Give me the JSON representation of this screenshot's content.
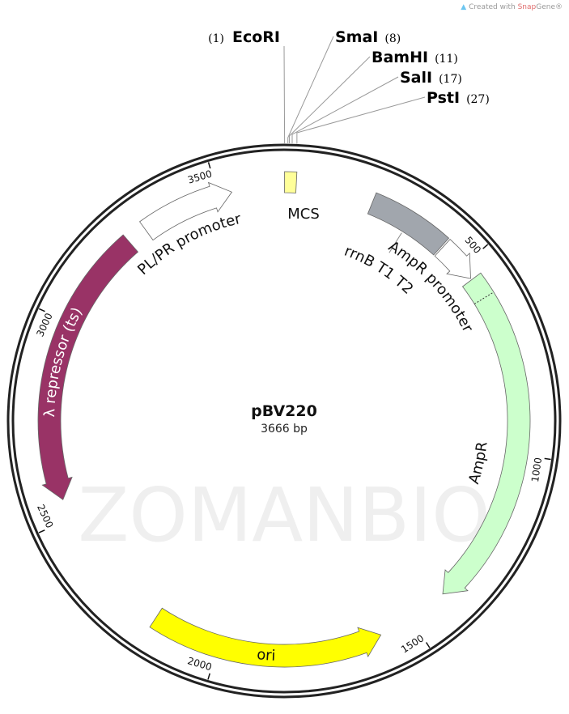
{
  "credit": {
    "prefix": "Created with ",
    "brand_a": "Snap",
    "brand_b": "Gene",
    "suffix": "®"
  },
  "watermark": "ZOMANBIO",
  "plasmid": {
    "name": "pBV220",
    "length_label": "3666 bp",
    "length": 3666
  },
  "enzymes": [
    {
      "name": "EcoRI",
      "pos_label": "(1)",
      "pos": 1
    },
    {
      "name": "SmaI",
      "pos_label": "(8)",
      "pos": 8
    },
    {
      "name": "BamHI",
      "pos_label": "(11)",
      "pos": 11
    },
    {
      "name": "SalI",
      "pos_label": "(17)",
      "pos": 17
    },
    {
      "name": "PstI",
      "pos_label": "(27)",
      "pos": 27
    }
  ],
  "features": [
    {
      "name": "MCS",
      "start": 1,
      "end": 30,
      "direction": "none",
      "color": "#ffff99"
    },
    {
      "name": "rrnB T1 T2",
      "start": 224,
      "end": 428,
      "direction": "none",
      "color": "#a1a6ad"
    },
    {
      "name": "AmpR promoter",
      "start": 432,
      "end": 536,
      "direction": "forward",
      "color": "#ffffff"
    },
    {
      "name": "AmpR",
      "start": 540,
      "end": 1400,
      "direction": "forward",
      "color": "#ccffcc"
    },
    {
      "name": "ori",
      "start": 1585,
      "end": 2170,
      "direction": "reverse",
      "color": "#ffff00"
    },
    {
      "name": "λ repressor (ts)",
      "start": 2550,
      "end": 3250,
      "direction": "reverse",
      "color": "#993366"
    },
    {
      "name": "PL/PR promoter",
      "start": 3300,
      "end": 3535,
      "direction": "forward",
      "color": "#ffffff"
    }
  ],
  "ticks": [
    "500",
    "1000",
    "1500",
    "2000",
    "2500",
    "3000",
    "3500"
  ]
}
